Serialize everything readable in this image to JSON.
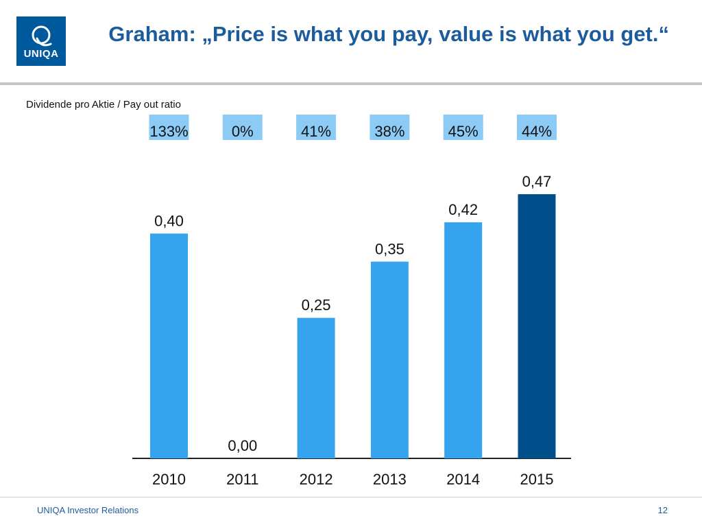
{
  "header": {
    "logo_text": "UNIQA",
    "title": "Graham: „Price is what you pay, value is what you get.“"
  },
  "colors": {
    "brand": "#00599d",
    "title": "#1d5c9c",
    "bar": "#35a3ee",
    "bar_highlight": "#004f8a",
    "ratio_box": "#8ccbf6"
  },
  "chart_data": {
    "type": "bar",
    "title": "Dividende pro Aktie / Pay out ratio",
    "categories": [
      "2010",
      "2011",
      "2012",
      "2013",
      "2014",
      "2015"
    ],
    "values": [
      0.4,
      0.0,
      0.25,
      0.35,
      0.42,
      0.47
    ],
    "value_labels": [
      "0,40",
      "0,00",
      "0,25",
      "0,35",
      "0,42",
      "0,47"
    ],
    "payout_ratio_labels": [
      "133%",
      "0%",
      "41%",
      "38%",
      "45%",
      "44%"
    ],
    "highlight_index": 5,
    "xlabel": "",
    "ylabel": "",
    "ylim": [
      0,
      0.47
    ]
  },
  "footer": {
    "left": "UNIQA Investor Relations",
    "page_number": "12"
  }
}
